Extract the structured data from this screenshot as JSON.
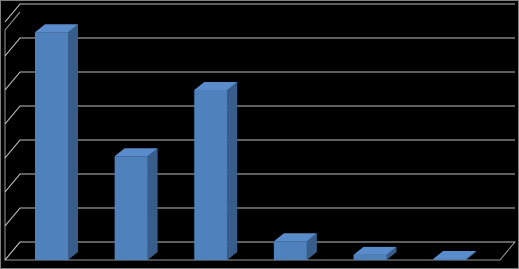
{
  "chart_data": {
    "type": "bar",
    "categories": [
      null,
      null,
      null,
      null,
      null,
      null
    ],
    "values": [
      6.7,
      3.05,
      5.0,
      0.55,
      0.15,
      0.03
    ],
    "color": "#4f81bd",
    "ylim": [
      0,
      7
    ],
    "yticks": [
      0,
      1,
      2,
      3,
      4,
      5,
      6,
      7
    ],
    "grid": true
  }
}
